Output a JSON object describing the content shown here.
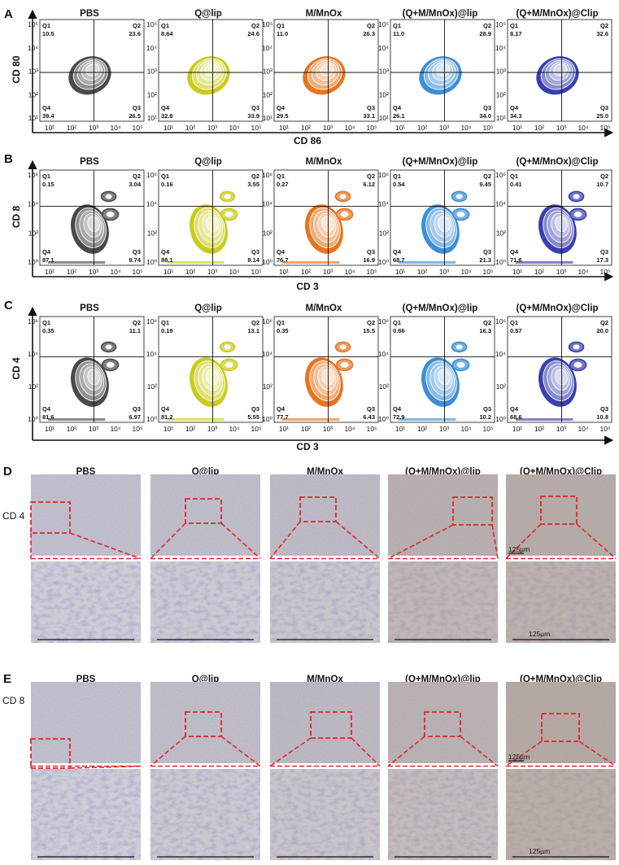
{
  "colors": {
    "PBS": "#4a4a4a",
    "Q@lip": "#c9cc1e",
    "M/MnOx": "#e8741c",
    "(Q+M/MnOx)@lip": "#3d8fd6",
    "(Q+M/MnOx)@Clip": "#3a3fae",
    "scale_dash": "#e0262a",
    "tissue_light": "#c7c4cd",
    "tissue_brown": "#a89582"
  },
  "groups": [
    "PBS",
    "Q@lip",
    "M/MnOx",
    "(Q+M/MnOx)@lip",
    "(Q+M/MnOx)@Clip"
  ],
  "panels": [
    {
      "letter": "A",
      "xlabel": "CD 86",
      "ylabel": "CD 80",
      "yticks": [
        "10⁵",
        "10⁴",
        "10³",
        "10²",
        "10¹"
      ],
      "xticks": [
        "10¹",
        "10²",
        "10³",
        "10⁴",
        "10⁵"
      ],
      "quadrants": [
        {
          "q1": "10.5",
          "q2": "23.6",
          "q3": "26.5",
          "q4": "39.4"
        },
        {
          "q1": "8.64",
          "q2": "24.6",
          "q3": "33.9",
          "q4": "32.8"
        },
        {
          "q1": "11.0",
          "q2": "26.3",
          "q3": "33.1",
          "q4": "29.5"
        },
        {
          "q1": "11.0",
          "q2": "28.9",
          "q3": "34.0",
          "q4": "26.1"
        },
        {
          "q1": "8.17",
          "q2": "32.6",
          "q3": "25.0",
          "q4": "34.3"
        }
      ]
    },
    {
      "letter": "B",
      "xlabel": "CD 3",
      "ylabel": "CD 8",
      "yticks": [
        "10⁶",
        "10⁴",
        "10²",
        "10⁰"
      ],
      "xticks": [
        "10¹",
        "10²",
        "10³",
        "10⁴",
        "10⁵"
      ],
      "quadrants": [
        {
          "q1": "0.15",
          "q2": "3.04",
          "q3": "9.74",
          "q4": "87.1"
        },
        {
          "q1": "0.16",
          "q2": "3.55",
          "q3": "8.14",
          "q4": "88.1"
        },
        {
          "q1": "0.27",
          "q2": "6.12",
          "q3": "16.9",
          "q4": "76.7"
        },
        {
          "q1": "0.54",
          "q2": "9.45",
          "q3": "21.3",
          "q4": "68.7"
        },
        {
          "q1": "0.41",
          "q2": "10.7",
          "q3": "17.3",
          "q4": "71.6"
        }
      ]
    },
    {
      "letter": "C",
      "xlabel": "CD 3",
      "ylabel": "CD 4",
      "yticks": [
        "10⁶",
        "10⁴",
        "10²",
        "10⁰"
      ],
      "xticks": [
        "10¹",
        "10²",
        "10³",
        "10⁴",
        "10⁵"
      ],
      "quadrants": [
        {
          "q1": "0.35",
          "q2": "11.1",
          "q3": "6.97",
          "q4": "81.6"
        },
        {
          "q1": "0.19",
          "q2": "13.1",
          "q3": "5.55",
          "q4": "81.2"
        },
        {
          "q1": "0.35",
          "q2": "15.5",
          "q3": "6.43",
          "q4": "77.7"
        },
        {
          "q1": "0.66",
          "q2": "16.3",
          "q3": "10.2",
          "q4": "72.9"
        },
        {
          "q1": "0.57",
          "q2": "20.0",
          "q3": "10.8",
          "q4": "68.6"
        }
      ]
    }
  ],
  "histology": [
    {
      "letter": "D",
      "row_label": "CD 4",
      "scale_label": "125µm",
      "tint": [
        0.0,
        0.05,
        0.15,
        0.55,
        0.7
      ]
    },
    {
      "letter": "E",
      "row_label": "CD 8",
      "scale_label": "125µm",
      "tint": [
        0.0,
        0.08,
        0.2,
        0.45,
        0.8
      ]
    }
  ],
  "quadrant_labels": {
    "q1": "Q1",
    "q2": "Q2",
    "q3": "Q3",
    "q4": "Q4"
  }
}
